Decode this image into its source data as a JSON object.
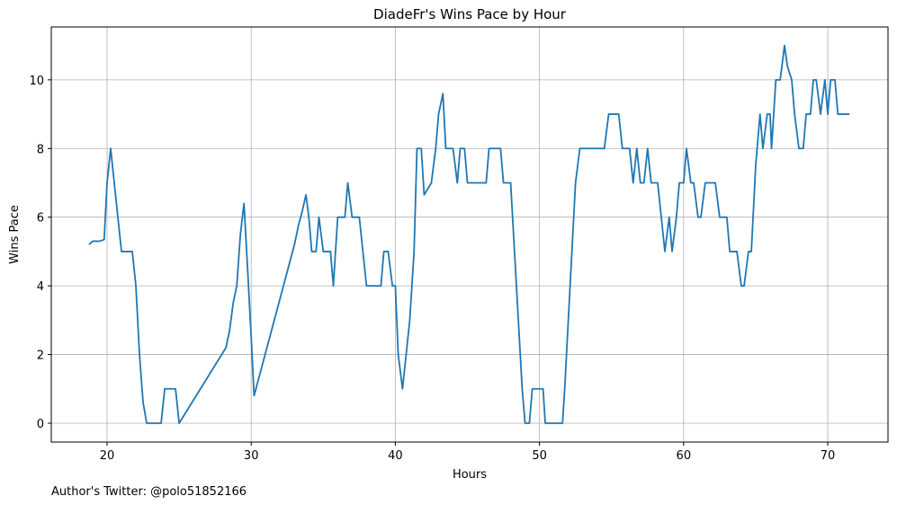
{
  "chart_data": {
    "type": "line",
    "title": "DiadeFr's Wins Pace by Hour",
    "xlabel": "Hours",
    "ylabel": "Wins Pace",
    "annotation": "Author's Twitter: @polo51852166",
    "color": "#1f77b4",
    "grid": true,
    "xlim": [
      16.13,
      74.18
    ],
    "ylim": [
      -0.55,
      11.54
    ],
    "xticks": [
      20,
      30,
      40,
      50,
      60,
      70
    ],
    "yticks": [
      0,
      2,
      4,
      6,
      8,
      10
    ],
    "x": [
      18.75,
      19.0,
      19.5,
      19.8,
      20.0,
      20.25,
      20.5,
      21.0,
      21.75,
      22.0,
      22.25,
      22.5,
      22.75,
      23.75,
      24.0,
      24.75,
      25.0,
      28.25,
      28.5,
      28.75,
      29.0,
      29.25,
      29.5,
      29.75,
      30.0,
      30.2,
      33.0,
      33.3,
      33.5,
      33.8,
      34.0,
      34.2,
      34.5,
      34.7,
      35.0,
      35.5,
      35.7,
      36.0,
      36.5,
      36.7,
      37.0,
      37.5,
      38.0,
      39.0,
      39.2,
      39.5,
      39.8,
      40.0,
      40.2,
      40.5,
      41.0,
      41.3,
      41.5,
      41.8,
      42.0,
      42.5,
      42.8,
      43.0,
      43.3,
      43.5,
      44.0,
      44.3,
      44.5,
      44.8,
      45.0,
      46.3,
      46.5,
      47.3,
      47.5,
      48.0,
      48.8,
      49.0,
      49.3,
      49.5,
      50.25,
      50.4,
      51.6,
      51.75,
      52.5,
      52.8,
      54.5,
      54.8,
      55.5,
      55.75,
      56.25,
      56.5,
      56.75,
      57.0,
      57.25,
      57.5,
      57.75,
      58.2,
      58.7,
      59.0,
      59.2,
      59.5,
      59.7,
      60.0,
      60.2,
      60.5,
      60.7,
      61.0,
      61.2,
      61.5,
      62.2,
      62.5,
      63.0,
      63.2,
      63.7,
      64.0,
      64.2,
      64.5,
      64.7,
      65.0,
      65.3,
      65.5,
      65.8,
      66.0,
      66.1,
      66.4,
      66.7,
      67.0,
      67.2,
      67.5,
      67.7,
      68.0,
      68.3,
      68.5,
      68.8,
      69.0,
      69.2,
      69.5,
      69.8,
      70.0,
      70.2,
      70.5,
      70.7,
      71.5
    ],
    "values": [
      5.2,
      5.3,
      5.3,
      5.35,
      7,
      8,
      7,
      5,
      5,
      4,
      2,
      0.6,
      0,
      0,
      1,
      1,
      0,
      2.2,
      2.7,
      3.5,
      4,
      5.5,
      6.4,
      4.5,
      2.5,
      0.8,
      5.2,
      5.8,
      6.1,
      6.65,
      6,
      5,
      5,
      6,
      5,
      5,
      4,
      6,
      6,
      7,
      6,
      6,
      4,
      4,
      5,
      5,
      4,
      4,
      2,
      1,
      3,
      5,
      8,
      8,
      6.65,
      7,
      8,
      9,
      9.6,
      8,
      8,
      7,
      8,
      8,
      7,
      7,
      8,
      8,
      7,
      7,
      1,
      0,
      0,
      1,
      1,
      0,
      0,
      1,
      7,
      8,
      8,
      9,
      9,
      8,
      8,
      7,
      8,
      7,
      7,
      8,
      7,
      7,
      5,
      6,
      5,
      6,
      7,
      7,
      8,
      7,
      7,
      6,
      6,
      7,
      7,
      6,
      6,
      5,
      5,
      4,
      4,
      5,
      5,
      7.5,
      9,
      8,
      9,
      9,
      8,
      10,
      10,
      11,
      10.4,
      10,
      9,
      8,
      8,
      9,
      9,
      10,
      10,
      9,
      10,
      9,
      10,
      10,
      9,
      9
    ]
  }
}
